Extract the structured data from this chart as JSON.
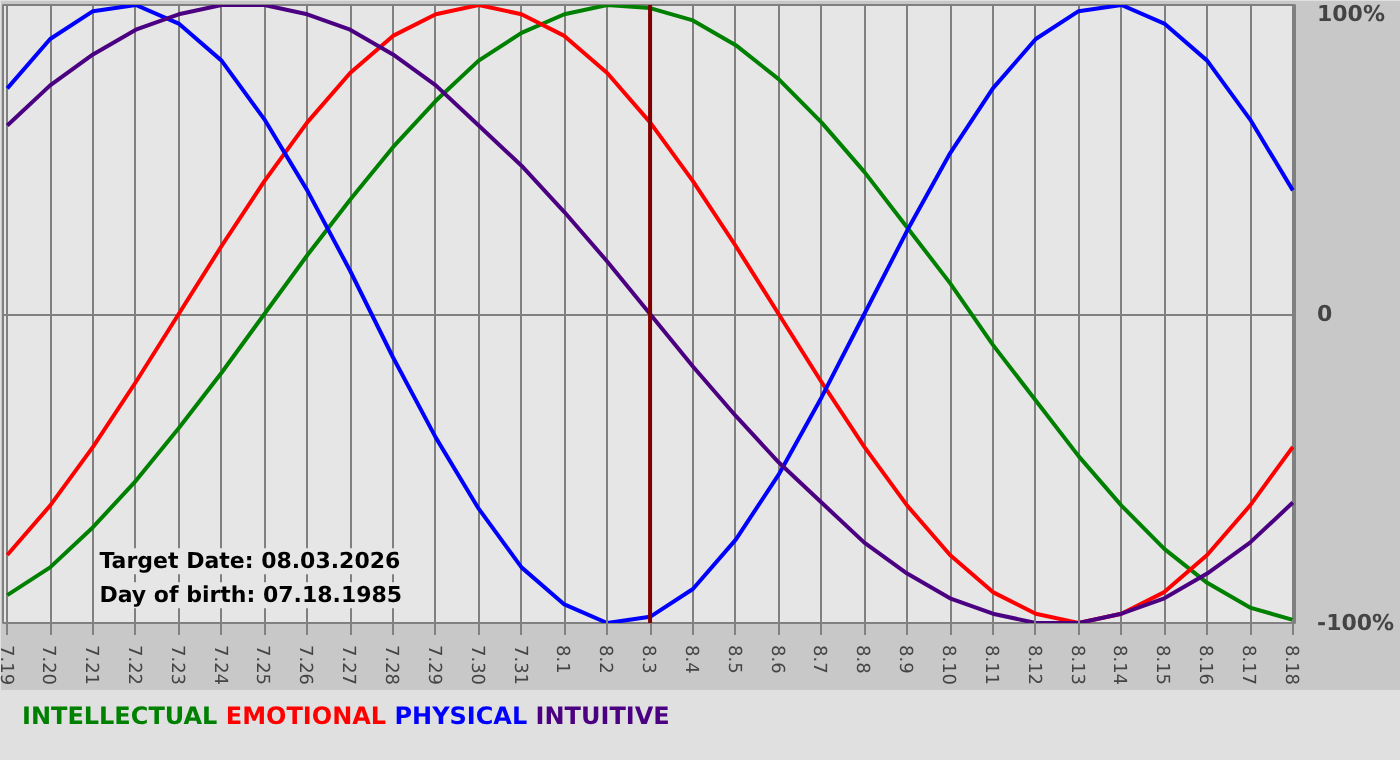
{
  "chart_data": {
    "type": "line",
    "categories": [
      "7.19",
      "7.20",
      "7.21",
      "7.22",
      "7.23",
      "7.24",
      "7.25",
      "7.26",
      "7.27",
      "7.28",
      "7.29",
      "7.30",
      "7.31",
      "8.1",
      "8.2",
      "8.3",
      "8.4",
      "8.5",
      "8.6",
      "8.7",
      "8.8",
      "8.9",
      "8.10",
      "8.11",
      "8.12",
      "8.13",
      "8.14",
      "8.15",
      "8.16",
      "8.17",
      "8.18"
    ],
    "series": [
      {
        "name": "INTELLECTUAL",
        "color": "#008000",
        "values": [
          -91,
          -82,
          -69,
          -54,
          -37,
          -19,
          0,
          19,
          37,
          54,
          69,
          82,
          91,
          97,
          100,
          99,
          95,
          87,
          76,
          62,
          46,
          28,
          10,
          -10,
          -28,
          -46,
          -62,
          -76,
          -87,
          -95,
          -99
        ]
      },
      {
        "name": "EMOTIONAL",
        "color": "#ff0000",
        "values": [
          -78,
          -62,
          -43,
          -22,
          0,
          22,
          43,
          62,
          78,
          90,
          97,
          100,
          97,
          90,
          78,
          62,
          43,
          22,
          0,
          -22,
          -43,
          -62,
          -78,
          -90,
          -97,
          -100,
          -97,
          -90,
          -78,
          -62,
          -43
        ]
      },
      {
        "name": "PHYSICAL",
        "color": "#0000ff",
        "values": [
          73,
          89,
          98,
          100,
          94,
          82,
          63,
          40,
          14,
          -14,
          -40,
          -63,
          -82,
          -94,
          -100,
          -98,
          -89,
          -73,
          -52,
          -27,
          0,
          27,
          52,
          73,
          89,
          98,
          100,
          94,
          82,
          63,
          40
        ]
      },
      {
        "name": "INTUITIVE",
        "color": "#4b0082",
        "values": [
          61,
          74,
          84,
          92,
          97,
          100,
          100,
          97,
          92,
          84,
          74,
          61,
          48,
          33,
          17,
          0,
          -17,
          -33,
          -48,
          -61,
          -74,
          -84,
          -92,
          -97,
          -100,
          -100,
          -97,
          -92,
          -84,
          -74,
          -61
        ]
      }
    ],
    "ylim": [
      -100,
      100
    ],
    "yticks": [
      {
        "value": 100,
        "label": "100%"
      },
      0,
      {
        "value": -100,
        "label": "-100%"
      }
    ],
    "grid": true,
    "legend": "bottom",
    "ref_lines": [
      {
        "axis": "x",
        "value": "8.3",
        "color": "#800000"
      }
    ],
    "annotations": [
      "Target Date: 08.03.2026",
      "Day of birth: 07.18.1985"
    ]
  }
}
